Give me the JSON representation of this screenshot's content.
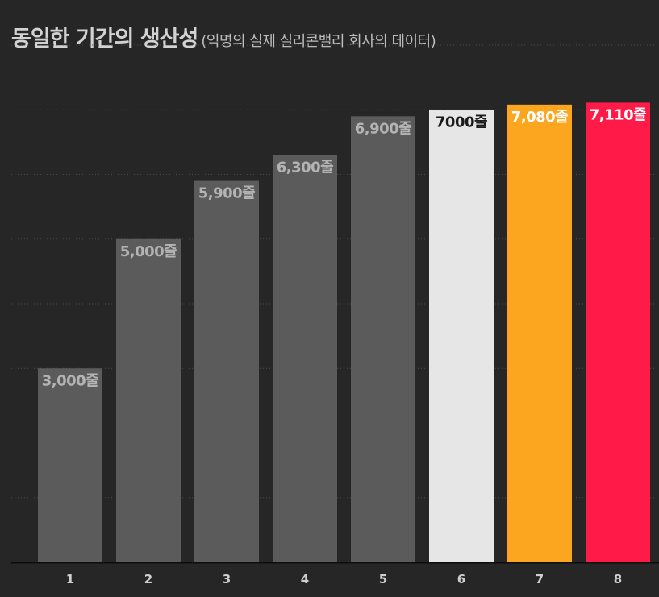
{
  "header": {
    "title": "동일한 기간의 생산성",
    "subtitle": "(익명의 실제 실리콘밸리 회사의 데이터)"
  },
  "chart_data": {
    "type": "bar",
    "title": "동일한 기간의 생산성",
    "subtitle": "(익명의 실제 실리콘밸리 회사의 데이터)",
    "xlabel": "",
    "ylabel": "",
    "categories": [
      "1",
      "2",
      "3",
      "4",
      "5",
      "6",
      "7",
      "8"
    ],
    "values": [
      3000,
      5000,
      5900,
      6300,
      6900,
      7000,
      7080,
      7110
    ],
    "data_labels": [
      "3,000줄",
      "5,000줄",
      "5,900줄",
      "6,300줄",
      "6,900줄",
      "7000줄",
      "7,080줄",
      "7,110줄"
    ],
    "ylim": [
      0,
      8000
    ],
    "grid": true,
    "legend": "none",
    "colors": {
      "background": "#262626",
      "default_bar": "#5b5b5b",
      "default_label": "#b4b4b4",
      "bars": [
        "#5b5b5b",
        "#5b5b5b",
        "#5b5b5b",
        "#5b5b5b",
        "#5b5b5b",
        "#e6e6e6",
        "#fca51f",
        "#ff1a47"
      ],
      "labels": [
        "#b4b4b4",
        "#b4b4b4",
        "#b4b4b4",
        "#b4b4b4",
        "#b4b4b4",
        "#1a1a1a",
        "#ffffff",
        "#ffffff"
      ],
      "gridline": "#4a4a4a",
      "axis": "#0d0d0d"
    }
  }
}
